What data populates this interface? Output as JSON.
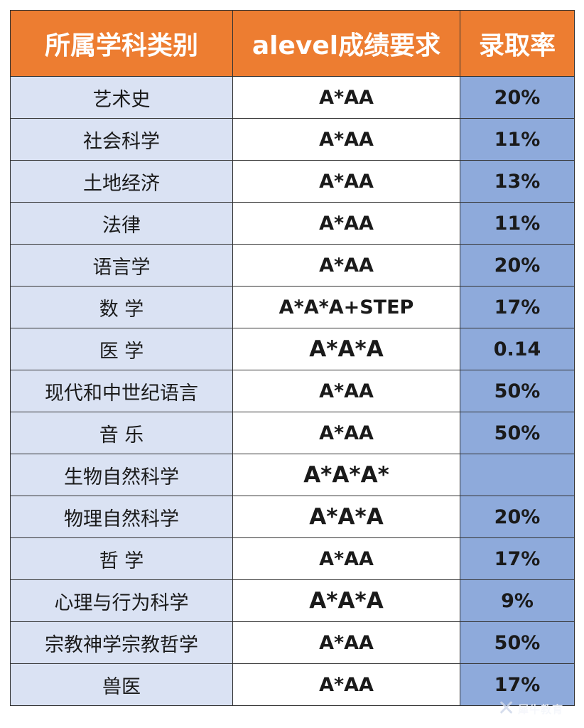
{
  "table": {
    "headers": [
      "所属学科类别",
      "alevel成绩要求",
      "录取率"
    ],
    "rows": [
      {
        "subject": "艺术史",
        "requirement": "A*AA",
        "rate": "20%"
      },
      {
        "subject": "社会科学",
        "requirement": "A*AA",
        "rate": "11%"
      },
      {
        "subject": "土地经济",
        "requirement": "A*AA",
        "rate": "13%"
      },
      {
        "subject": "法律",
        "requirement": "A*AA",
        "rate": "11%"
      },
      {
        "subject": "语言学",
        "requirement": "A*AA",
        "rate": "20%"
      },
      {
        "subject": "数 学",
        "requirement": "A*A*A+STEP",
        "rate": "17%"
      },
      {
        "subject": "医 学",
        "requirement": "A*A*A",
        "rate": "0.14"
      },
      {
        "subject": "现代和中世纪语言",
        "requirement": "A*AA",
        "rate": "50%"
      },
      {
        "subject": "音 乐",
        "requirement": "A*AA",
        "rate": "50%"
      },
      {
        "subject": "生物自然科学",
        "requirement": "A*A*A*",
        "rate": ""
      },
      {
        "subject": "物理自然科学",
        "requirement": "A*A*A",
        "rate": "20%"
      },
      {
        "subject": "哲 学",
        "requirement": "A*AA",
        "rate": "17%"
      },
      {
        "subject": "心理与行为科学",
        "requirement": "A*A*A",
        "rate": "9%"
      },
      {
        "subject": "宗教神学宗教哲学",
        "requirement": "A*AA",
        "rate": "50%"
      },
      {
        "subject": "兽医",
        "requirement": "A*AA",
        "rate": "17%"
      }
    ]
  },
  "watermark": {
    "icon": "logo-icon",
    "text": "犀牛教育"
  },
  "colors": {
    "header_bg": "#ed7d31",
    "subject_bg": "#dae2f3",
    "rate_bg": "#8eaadb",
    "border": "#333333"
  }
}
